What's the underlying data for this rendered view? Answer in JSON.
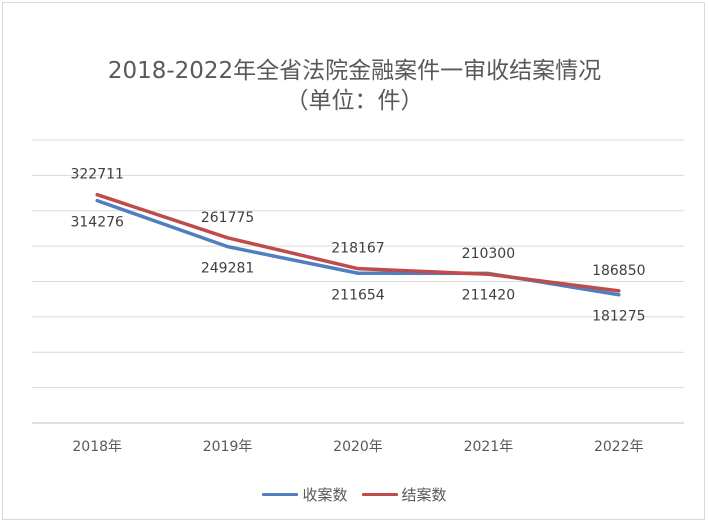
{
  "chart_data": {
    "type": "line",
    "title": "2018-2022年全省法院金融案件一审收结案情况",
    "subtitle": "（单位：件）",
    "categories": [
      "2018年",
      "2019年",
      "2020年",
      "2021年",
      "2022年"
    ],
    "series": [
      {
        "name": "收案数",
        "values": [
          314276,
          249281,
          211654,
          211420,
          181275
        ],
        "color": "#4f7fbf",
        "label_pos": "below"
      },
      {
        "name": "结案数",
        "values": [
          322711,
          261775,
          218167,
          210300,
          186850
        ],
        "color": "#bf4b4b",
        "label_pos": "above"
      }
    ],
    "ylim": [
      0,
      400000
    ],
    "grid": true,
    "legend": "bottom"
  }
}
